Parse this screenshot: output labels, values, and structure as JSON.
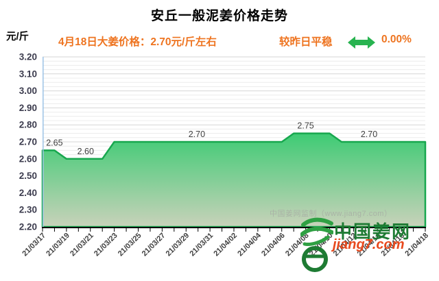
{
  "title": "安丘一般泥姜价格走势",
  "y_unit": "元/斤",
  "subtitle": {
    "price_text": "4月18日大姜价格：2.70元/斤左右",
    "trend_label": "较昨日平稳",
    "trend_value": "0.00%",
    "trend_icon": "flat-double-arrow-icon"
  },
  "watermark": "中国姜网监制（www.jiang7.com）",
  "logo": {
    "glyph": "ginger-leaf-e-logo-icon",
    "site_name": "中国姜网",
    "site_url": "jiang7.com"
  },
  "colors": {
    "accent_orange": "#ee7420",
    "arrow_green": "#28b350",
    "line_green": "#17a74e",
    "area_top": "#3ecb74",
    "area_bottom": "#c9d2ba",
    "axis_blue": "#9dc3e6",
    "major_grid": "#d6d6d6",
    "minor_grid": "#ececec",
    "tick_label": "#3c3c4e",
    "date_label": "#404040",
    "logo_green": "#1e7b33",
    "logo_red": "#e8491d"
  },
  "chart_data": {
    "type": "area",
    "title": "安丘一般泥姜价格走势",
    "ylabel": "元/斤",
    "xlabel": "",
    "grid": true,
    "legend": false,
    "ylim": [
      2.2,
      3.2
    ],
    "y_major_step": 0.1,
    "y_minor_step": 0.025,
    "x": [
      "21/03/17",
      "21/03/18",
      "21/03/19",
      "21/03/20",
      "21/03/21",
      "21/03/22",
      "21/03/23",
      "21/03/24",
      "21/03/25",
      "21/03/26",
      "21/03/27",
      "21/03/28",
      "21/03/29",
      "21/03/30",
      "21/03/31",
      "21/04/01",
      "21/04/02",
      "21/04/03",
      "21/04/04",
      "21/04/05",
      "21/04/06",
      "21/04/07",
      "21/04/08",
      "21/04/09",
      "21/04/10",
      "21/04/11",
      "21/04/12",
      "21/04/13",
      "21/04/14",
      "21/04/15",
      "21/04/16",
      "21/04/17",
      "21/04/18"
    ],
    "values": [
      2.65,
      2.65,
      2.6,
      2.6,
      2.6,
      2.6,
      2.7,
      2.7,
      2.7,
      2.7,
      2.7,
      2.7,
      2.7,
      2.7,
      2.7,
      2.7,
      2.7,
      2.7,
      2.7,
      2.7,
      2.7,
      2.75,
      2.75,
      2.75,
      2.75,
      2.7,
      2.7,
      2.7,
      2.7,
      2.7,
      2.7,
      2.7,
      2.7
    ],
    "x_tick_labels": [
      "21/03/17",
      "21/03/19",
      "21/03/21",
      "21/03/23",
      "21/03/25",
      "21/03/27",
      "21/03/29",
      "21/03/31",
      "21/04/02",
      "21/04/04",
      "21/04/06",
      "21/04/08",
      "21/04/10",
      "21/04/12",
      "21/04/14",
      "21/04/16",
      "21/04/18"
    ],
    "x_tick_every": 2,
    "point_labels": [
      {
        "text": "2.65",
        "day": 1.0,
        "value": 2.65
      },
      {
        "text": "2.60",
        "day": 3.6,
        "value": 2.6
      },
      {
        "text": "2.70",
        "day": 12.9,
        "value": 2.7
      },
      {
        "text": "2.75",
        "day": 22.0,
        "value": 2.75
      },
      {
        "text": "2.70",
        "day": 27.3,
        "value": 2.7
      }
    ]
  }
}
